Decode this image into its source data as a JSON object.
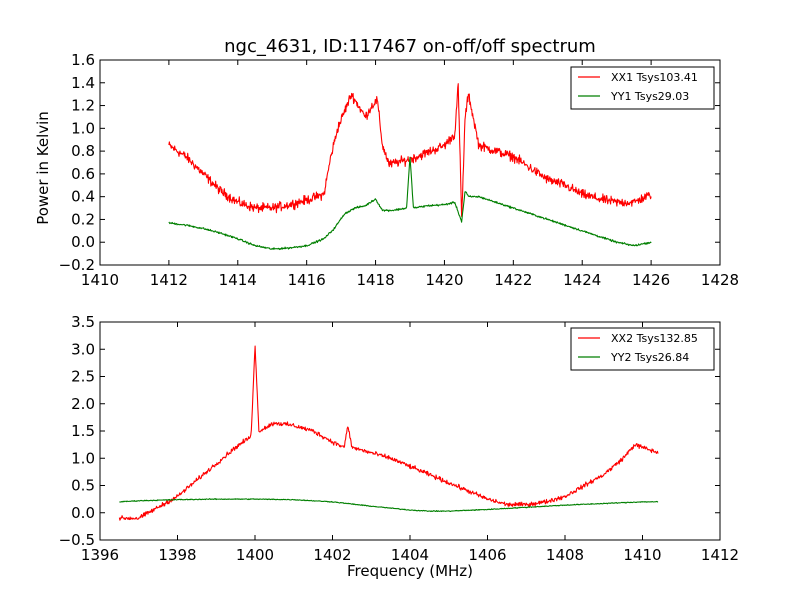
{
  "figure": {
    "title": "ngc_4631, ID:117467 on-off/off spectrum",
    "ylabel": "Power in Kelvin",
    "xlabel": "Frequency (MHz)"
  },
  "chart_data": [
    {
      "type": "line",
      "title": "ngc_4631, ID:117467 on-off/off spectrum",
      "xlabel": "",
      "ylabel": "Power in Kelvin",
      "xlim": [
        1410,
        1428
      ],
      "ylim": [
        -0.2,
        1.6
      ],
      "xticks": [
        1410,
        1412,
        1414,
        1416,
        1418,
        1420,
        1422,
        1424,
        1426,
        1428
      ],
      "yticks": [
        -0.2,
        0.0,
        0.2,
        0.4,
        0.6,
        0.8,
        1.0,
        1.2,
        1.4,
        1.6
      ],
      "xtick_labels": [
        "1410",
        "1412",
        "1414",
        "1416",
        "1418",
        "1420",
        "1422",
        "1424",
        "1426",
        "1428"
      ],
      "ytick_labels": [
        "−0.2",
        "0.0",
        "0.2",
        "0.4",
        "0.6",
        "0.8",
        "1.0",
        "1.2",
        "1.4",
        "1.6"
      ],
      "grid": false,
      "legend_position": "top-right",
      "series": [
        {
          "name": "XX1 Tsys103.41",
          "color": "#ff0000",
          "noise": 0.06,
          "x": [
            1412.0,
            1412.5,
            1413.0,
            1413.5,
            1414.0,
            1414.5,
            1415.0,
            1415.5,
            1416.0,
            1416.5,
            1416.7,
            1416.9,
            1417.1,
            1417.3,
            1417.5,
            1417.7,
            1417.9,
            1418.05,
            1418.2,
            1418.4,
            1418.6,
            1418.9,
            1419.2,
            1419.6,
            1420.0,
            1420.3,
            1420.4,
            1420.5,
            1420.6,
            1420.7,
            1421.0,
            1421.5,
            1422.0,
            1422.5,
            1423.0,
            1423.5,
            1424.0,
            1424.5,
            1425.0,
            1425.5,
            1426.0
          ],
          "y": [
            0.85,
            0.75,
            0.6,
            0.45,
            0.35,
            0.3,
            0.3,
            0.33,
            0.37,
            0.42,
            0.75,
            1.0,
            1.15,
            1.3,
            1.2,
            1.1,
            1.2,
            1.25,
            0.85,
            0.68,
            0.7,
            0.72,
            0.75,
            0.8,
            0.85,
            0.95,
            1.38,
            0.2,
            1.1,
            1.3,
            0.85,
            0.8,
            0.75,
            0.65,
            0.55,
            0.5,
            0.42,
            0.38,
            0.35,
            0.35,
            0.42
          ]
        },
        {
          "name": "YY1 Tsys29.03",
          "color": "#007f00",
          "noise": 0.012,
          "x": [
            1412.0,
            1412.5,
            1413.0,
            1413.5,
            1414.0,
            1414.5,
            1415.0,
            1415.5,
            1416.0,
            1416.5,
            1416.8,
            1417.1,
            1417.4,
            1417.7,
            1418.0,
            1418.2,
            1418.5,
            1418.9,
            1419.0,
            1419.1,
            1419.5,
            1420.0,
            1420.3,
            1420.5,
            1420.6,
            1420.7,
            1421.0,
            1421.5,
            1422.0,
            1422.5,
            1423.0,
            1423.5,
            1424.0,
            1424.5,
            1425.0,
            1425.5,
            1426.0
          ],
          "y": [
            0.17,
            0.15,
            0.12,
            0.08,
            0.03,
            -0.03,
            -0.06,
            -0.05,
            -0.03,
            0.03,
            0.12,
            0.25,
            0.3,
            0.32,
            0.38,
            0.28,
            0.28,
            0.3,
            0.75,
            0.3,
            0.32,
            0.33,
            0.35,
            0.18,
            0.45,
            0.4,
            0.4,
            0.35,
            0.3,
            0.25,
            0.2,
            0.15,
            0.1,
            0.05,
            0.0,
            -0.03,
            0.0
          ]
        }
      ]
    },
    {
      "type": "line",
      "title": "",
      "xlabel": "Frequency (MHz)",
      "ylabel": "",
      "xlim": [
        1396,
        1412
      ],
      "ylim": [
        -0.5,
        3.5
      ],
      "xticks": [
        1396,
        1398,
        1400,
        1402,
        1404,
        1406,
        1408,
        1410,
        1412
      ],
      "yticks": [
        -0.5,
        0.0,
        0.5,
        1.0,
        1.5,
        2.0,
        2.5,
        3.0,
        3.5
      ],
      "xtick_labels": [
        "1396",
        "1398",
        "1400",
        "1402",
        "1404",
        "1406",
        "1408",
        "1410",
        "1412"
      ],
      "ytick_labels": [
        "−0.5",
        "0.0",
        "0.5",
        "1.0",
        "1.5",
        "2.0",
        "2.5",
        "3.0",
        "3.5"
      ],
      "grid": false,
      "legend_position": "top-right",
      "series": [
        {
          "name": "XX2 Tsys132.85",
          "color": "#ff0000",
          "noise": 0.06,
          "x": [
            1396.5,
            1397.0,
            1397.5,
            1398.0,
            1398.5,
            1399.0,
            1399.5,
            1399.9,
            1400.0,
            1400.1,
            1400.5,
            1401.0,
            1401.5,
            1402.0,
            1402.3,
            1402.4,
            1402.5,
            1403.0,
            1403.5,
            1404.0,
            1404.5,
            1405.0,
            1405.5,
            1406.0,
            1406.5,
            1407.0,
            1407.5,
            1408.0,
            1408.5,
            1409.0,
            1409.5,
            1409.8,
            1410.0,
            1410.4
          ],
          "y": [
            -0.1,
            -0.1,
            0.1,
            0.3,
            0.6,
            0.9,
            1.2,
            1.4,
            3.1,
            1.5,
            1.65,
            1.6,
            1.5,
            1.3,
            1.2,
            1.6,
            1.2,
            1.1,
            1.0,
            0.85,
            0.7,
            0.55,
            0.4,
            0.25,
            0.15,
            0.15,
            0.2,
            0.3,
            0.5,
            0.7,
            1.0,
            1.25,
            1.2,
            1.1
          ]
        },
        {
          "name": "YY2 Tsys26.84",
          "color": "#007f00",
          "noise": 0.012,
          "x": [
            1396.5,
            1397.0,
            1398.0,
            1399.0,
            1400.0,
            1401.0,
            1402.0,
            1403.0,
            1404.0,
            1404.5,
            1405.0,
            1406.0,
            1407.0,
            1408.0,
            1409.0,
            1410.0,
            1410.4
          ],
          "y": [
            0.2,
            0.22,
            0.24,
            0.25,
            0.25,
            0.24,
            0.2,
            0.12,
            0.05,
            0.03,
            0.03,
            0.06,
            0.1,
            0.14,
            0.17,
            0.2,
            0.2
          ]
        }
      ]
    }
  ]
}
